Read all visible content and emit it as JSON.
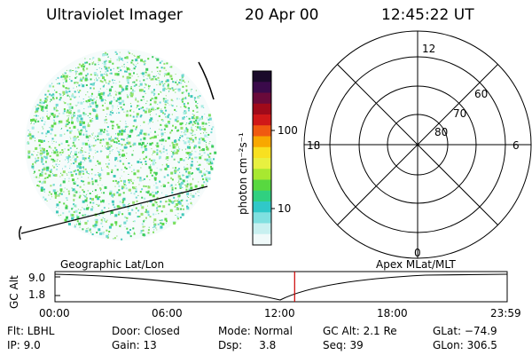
{
  "header": {
    "title": "Ultraviolet Imager",
    "date": "20 Apr 00",
    "time": "12:45:22 UT"
  },
  "colorbar": {
    "unit_label": "photon cm⁻²s⁻¹",
    "ticks": [
      "100",
      "10"
    ],
    "colors": [
      "#1a0a2a",
      "#3a0a4a",
      "#6a0a3a",
      "#a00a1a",
      "#d01818",
      "#f05a10",
      "#f8a800",
      "#f8e020",
      "#e8f040",
      "#a8e830",
      "#58d840",
      "#30d080",
      "#30c8c8",
      "#80e0e0",
      "#c8f0f0",
      "#f0fafa"
    ]
  },
  "polar_plot": {
    "mlt_labels": {
      "top": "12",
      "left": "18",
      "right": "6",
      "bottom": "0"
    },
    "lat_labels": [
      "60",
      "70",
      "80"
    ]
  },
  "timeline": {
    "axis_label": "GC Alt",
    "alt_ticks": [
      "9.0",
      "1.8"
    ],
    "left_label": "Geographic Lat/Lon",
    "right_label": "Apex MLat/MLT",
    "time_ticks": [
      "00:00",
      "06:00",
      "12:00",
      "18:00",
      "23:59"
    ],
    "marker_color": "#cc0000",
    "current_time_fraction": 0.53
  },
  "info": {
    "flt": "Flt: LBHL",
    "ip": "IP:  9.0",
    "door": "Door: Closed",
    "gain": "Gain: 13",
    "mode": "Mode: Normal",
    "dsp": "Dsp:     3.8",
    "gc_alt": "GC Alt: 2.1 Re",
    "seq": "Seq: 39",
    "glat": "GLat: −74.9",
    "glon": "GLon: 306.5"
  }
}
